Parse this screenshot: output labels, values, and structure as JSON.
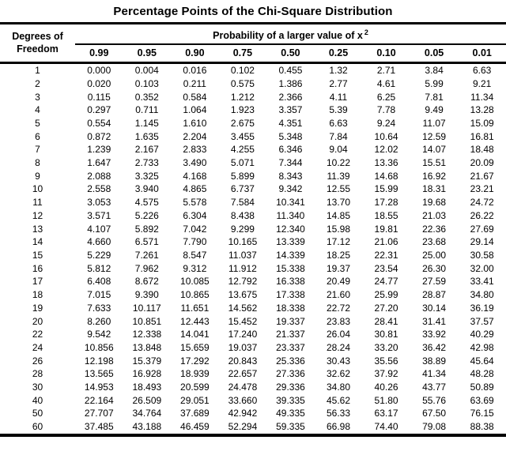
{
  "title": "Percentage Points of the Chi-Square Distribution",
  "colors": {
    "text": "#000000",
    "background": "#ffffff",
    "rule": "#000000"
  },
  "table": {
    "row_header_line1": "Degrees of",
    "row_header_line2": "Freedom",
    "group_header": {
      "text": "Probability of a larger value of x",
      "superscript": "2"
    },
    "columns": [
      "0.99",
      "0.95",
      "0.90",
      "0.75",
      "0.50",
      "0.25",
      "0.10",
      "0.05",
      "0.01"
    ],
    "rows": [
      [
        "1",
        "0.000",
        "0.004",
        "0.016",
        "0.102",
        "0.455",
        "1.32",
        "2.71",
        "3.84",
        "6.63"
      ],
      [
        "2",
        "0.020",
        "0.103",
        "0.211",
        "0.575",
        "1.386",
        "2.77",
        "4.61",
        "5.99",
        "9.21"
      ],
      [
        "3",
        "0.115",
        "0.352",
        "0.584",
        "1.212",
        "2.366",
        "4.11",
        "6.25",
        "7.81",
        "11.34"
      ],
      [
        "4",
        "0.297",
        "0.711",
        "1.064",
        "1.923",
        "3.357",
        "5.39",
        "7.78",
        "9.49",
        "13.28"
      ],
      [
        "5",
        "0.554",
        "1.145",
        "1.610",
        "2.675",
        "4.351",
        "6.63",
        "9.24",
        "11.07",
        "15.09"
      ],
      [
        "6",
        "0.872",
        "1.635",
        "2.204",
        "3.455",
        "5.348",
        "7.84",
        "10.64",
        "12.59",
        "16.81"
      ],
      [
        "7",
        "1.239",
        "2.167",
        "2.833",
        "4.255",
        "6.346",
        "9.04",
        "12.02",
        "14.07",
        "18.48"
      ],
      [
        "8",
        "1.647",
        "2.733",
        "3.490",
        "5.071",
        "7.344",
        "10.22",
        "13.36",
        "15.51",
        "20.09"
      ],
      [
        "9",
        "2.088",
        "3.325",
        "4.168",
        "5.899",
        "8.343",
        "11.39",
        "14.68",
        "16.92",
        "21.67"
      ],
      [
        "10",
        "2.558",
        "3.940",
        "4.865",
        "6.737",
        "9.342",
        "12.55",
        "15.99",
        "18.31",
        "23.21"
      ],
      [
        "11",
        "3.053",
        "4.575",
        "5.578",
        "7.584",
        "10.341",
        "13.70",
        "17.28",
        "19.68",
        "24.72"
      ],
      [
        "12",
        "3.571",
        "5.226",
        "6.304",
        "8.438",
        "11.340",
        "14.85",
        "18.55",
        "21.03",
        "26.22"
      ],
      [
        "13",
        "4.107",
        "5.892",
        "7.042",
        "9.299",
        "12.340",
        "15.98",
        "19.81",
        "22.36",
        "27.69"
      ],
      [
        "14",
        "4.660",
        "6.571",
        "7.790",
        "10.165",
        "13.339",
        "17.12",
        "21.06",
        "23.68",
        "29.14"
      ],
      [
        "15",
        "5.229",
        "7.261",
        "8.547",
        "11.037",
        "14.339",
        "18.25",
        "22.31",
        "25.00",
        "30.58"
      ],
      [
        "16",
        "5.812",
        "7.962",
        "9.312",
        "11.912",
        "15.338",
        "19.37",
        "23.54",
        "26.30",
        "32.00"
      ],
      [
        "17",
        "6.408",
        "8.672",
        "10.085",
        "12.792",
        "16.338",
        "20.49",
        "24.77",
        "27.59",
        "33.41"
      ],
      [
        "18",
        "7.015",
        "9.390",
        "10.865",
        "13.675",
        "17.338",
        "21.60",
        "25.99",
        "28.87",
        "34.80"
      ],
      [
        "19",
        "7.633",
        "10.117",
        "11.651",
        "14.562",
        "18.338",
        "22.72",
        "27.20",
        "30.14",
        "36.19"
      ],
      [
        "20",
        "8.260",
        "10.851",
        "12.443",
        "15.452",
        "19.337",
        "23.83",
        "28.41",
        "31.41",
        "37.57"
      ],
      [
        "22",
        "9.542",
        "12.338",
        "14.041",
        "17.240",
        "21.337",
        "26.04",
        "30.81",
        "33.92",
        "40.29"
      ],
      [
        "24",
        "10.856",
        "13.848",
        "15.659",
        "19.037",
        "23.337",
        "28.24",
        "33.20",
        "36.42",
        "42.98"
      ],
      [
        "26",
        "12.198",
        "15.379",
        "17.292",
        "20.843",
        "25.336",
        "30.43",
        "35.56",
        "38.89",
        "45.64"
      ],
      [
        "28",
        "13.565",
        "16.928",
        "18.939",
        "22.657",
        "27.336",
        "32.62",
        "37.92",
        "41.34",
        "48.28"
      ],
      [
        "30",
        "14.953",
        "18.493",
        "20.599",
        "24.478",
        "29.336",
        "34.80",
        "40.26",
        "43.77",
        "50.89"
      ],
      [
        "40",
        "22.164",
        "26.509",
        "29.051",
        "33.660",
        "39.335",
        "45.62",
        "51.80",
        "55.76",
        "63.69"
      ],
      [
        "50",
        "27.707",
        "34.764",
        "37.689",
        "42.942",
        "49.335",
        "56.33",
        "63.17",
        "67.50",
        "76.15"
      ],
      [
        "60",
        "37.485",
        "43.188",
        "46.459",
        "52.294",
        "59.335",
        "66.98",
        "74.40",
        "79.08",
        "88.38"
      ]
    ]
  }
}
